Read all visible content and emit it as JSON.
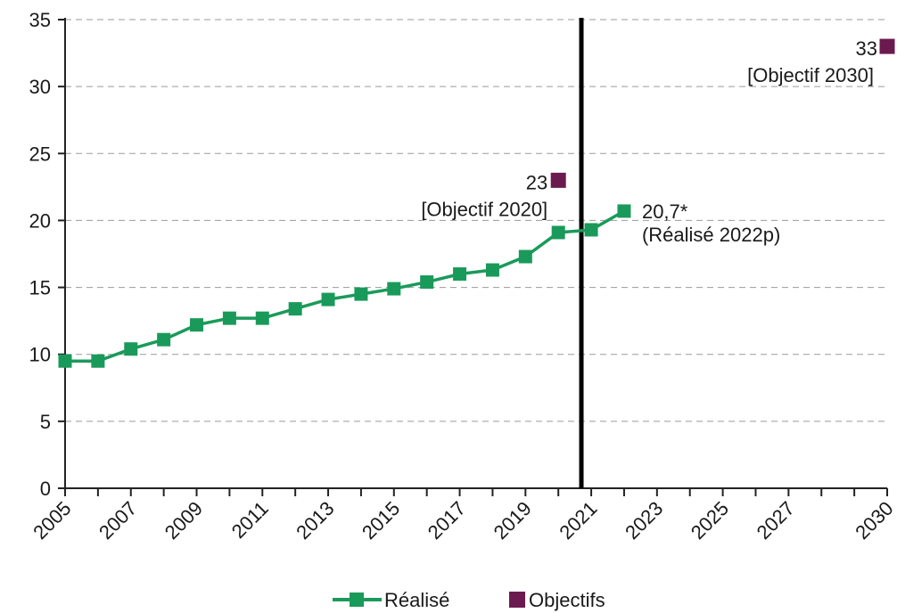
{
  "chart_data": {
    "type": "line",
    "x_ticks": [
      2005,
      2007,
      2009,
      2011,
      2013,
      2015,
      2017,
      2019,
      2021,
      2023,
      2025,
      2027,
      2030
    ],
    "ylim": [
      0,
      35
    ],
    "y_ticks": [
      0,
      5,
      10,
      15,
      20,
      25,
      30,
      35
    ],
    "grid": "horizontal-dashed",
    "divider_year": 2020.7,
    "series": [
      {
        "name": "Réalisé",
        "color": "#1a9a5a",
        "marker": "square",
        "points": [
          {
            "x": 2005,
            "y": 9.5
          },
          {
            "x": 2006,
            "y": 9.5
          },
          {
            "x": 2007,
            "y": 10.4
          },
          {
            "x": 2008,
            "y": 11.1
          },
          {
            "x": 2009,
            "y": 12.2
          },
          {
            "x": 2010,
            "y": 12.7
          },
          {
            "x": 2011,
            "y": 12.7
          },
          {
            "x": 2012,
            "y": 13.4
          },
          {
            "x": 2013,
            "y": 14.1
          },
          {
            "x": 2014,
            "y": 14.5
          },
          {
            "x": 2015,
            "y": 14.9
          },
          {
            "x": 2016,
            "y": 15.4
          },
          {
            "x": 2017,
            "y": 16.0
          },
          {
            "x": 2018,
            "y": 16.3
          },
          {
            "x": 2019,
            "y": 17.3
          },
          {
            "x": 2020,
            "y": 19.1
          },
          {
            "x": 2021,
            "y": 19.3
          },
          {
            "x": 2022,
            "y": 20.7
          }
        ]
      },
      {
        "name": "Objectifs",
        "color": "#6b1a4f",
        "marker": "square",
        "points": [
          {
            "x": 2020,
            "y": 23
          },
          {
            "x": 2030,
            "y": 33
          }
        ]
      }
    ],
    "annotations": {
      "obj2020_value": "23",
      "obj2020_label": "[Objectif 2020]",
      "obj2030_value": "33",
      "obj2030_label": "[Objectif 2030]",
      "real2022_value": "20,7*",
      "real2022_label": "(Réalisé 2022p)"
    },
    "legend": {
      "position": "bottom-center",
      "items": [
        "Réalisé",
        "Objectifs"
      ]
    }
  }
}
